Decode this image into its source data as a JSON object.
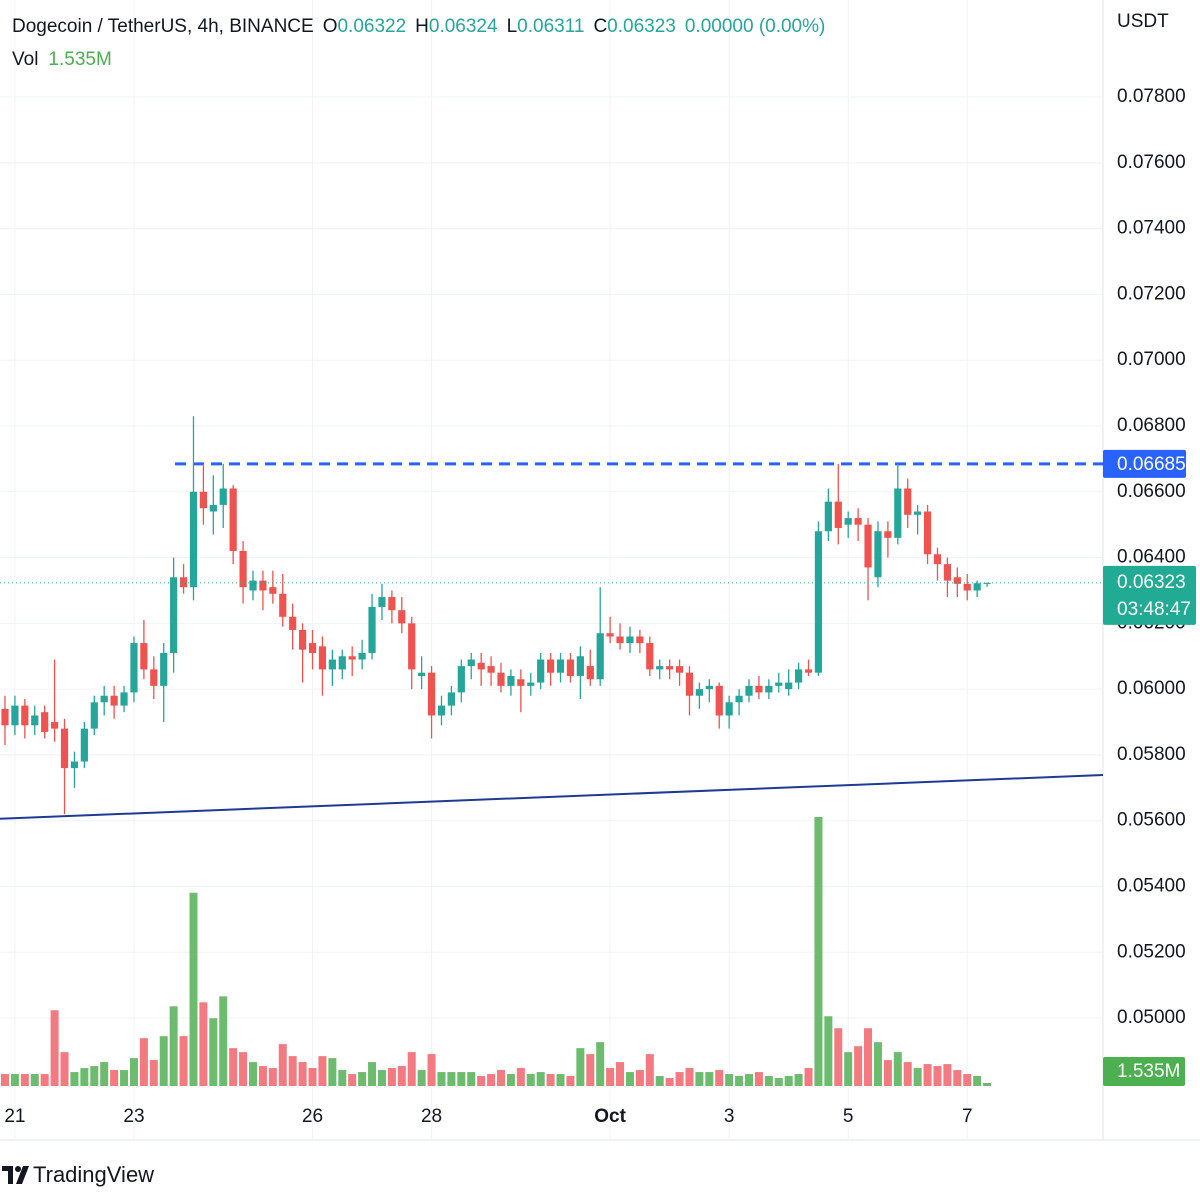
{
  "chart_data": {
    "type": "candlestick",
    "title": "Dogecoin / TetherUS, 4h, BINANCE",
    "ohlc_labels": [
      "O",
      "H",
      "L",
      "C"
    ],
    "change": "0.00000 (0.00%)",
    "volume_title": "Vol",
    "volume_label": "1.535M",
    "axis_unit": "USDT",
    "countdown": "03:48:47",
    "brand": "TradingView",
    "up_color": "#26a69a",
    "down_color": "#ef5350",
    "volume_up_color": "#6dbb6f",
    "volume_down_color": "#f27a80",
    "resistance": 0.06685,
    "resistance_color": "#2962ff",
    "support_line": [
      0.05606,
      0.05739
    ],
    "support_color": "#1e3a94",
    "grid": true,
    "categories": [
      null,
      "21",
      null,
      null,
      null,
      null,
      null,
      null,
      null,
      null,
      null,
      null,
      null,
      "23",
      null,
      null,
      null,
      null,
      null,
      null,
      null,
      null,
      null,
      null,
      null,
      null,
      null,
      null,
      null,
      null,
      null,
      "26",
      null,
      null,
      null,
      null,
      null,
      null,
      null,
      null,
      null,
      null,
      null,
      "28",
      null,
      null,
      null,
      null,
      null,
      null,
      null,
      null,
      null,
      null,
      null,
      null,
      null,
      null,
      null,
      null,
      null,
      "Oct",
      null,
      null,
      null,
      null,
      null,
      null,
      null,
      null,
      null,
      null,
      null,
      "3",
      null,
      null,
      null,
      null,
      null,
      null,
      null,
      null,
      null,
      null,
      null,
      "5",
      null,
      null,
      null,
      null,
      null,
      null,
      null,
      null,
      null,
      null,
      null,
      "7",
      null,
      null
    ],
    "open": [
      0.0594,
      0.0589,
      0.0595,
      0.0589,
      0.0593,
      0.059,
      0.0588,
      0.0576,
      0.0578,
      0.0588,
      0.0596,
      0.0598,
      0.0595,
      0.0599,
      0.0614,
      0.0606,
      0.0601,
      0.0611,
      0.0634,
      0.0631,
      0.066,
      0.0654,
      0.0656,
      0.0661,
      0.0642,
      0.063,
      0.0633,
      0.0631,
      0.0629,
      0.0622,
      0.0618,
      0.0614,
      0.0613,
      0.0606,
      0.0606,
      0.061,
      0.0609,
      0.0611,
      0.0625,
      0.0628,
      0.0624,
      0.062,
      0.0604,
      0.0605,
      0.0592,
      0.0595,
      0.0599,
      0.0607,
      0.0608,
      0.0607,
      0.0605,
      0.0601,
      0.0603,
      0.0601,
      0.0602,
      0.0609,
      0.0605,
      0.0609,
      0.0604,
      0.0607,
      0.0603,
      0.0617,
      0.0616,
      0.0614,
      0.0616,
      0.0614,
      0.0606,
      0.0607,
      0.0607,
      0.0605,
      0.0598,
      0.06,
      0.0601,
      0.0592,
      0.0596,
      0.0598,
      0.0601,
      0.0599,
      0.0601,
      0.06,
      0.0602,
      0.0606,
      0.0605,
      0.0648,
      0.0657,
      0.065,
      0.0652,
      0.065,
      0.0634,
      0.0648,
      0.0646,
      0.0661,
      0.0653,
      0.0654,
      0.0641,
      0.0638,
      0.0634,
      0.0632,
      0.063,
      0.06322
    ],
    "high": [
      0.0598,
      0.0598,
      0.0597,
      0.0595,
      0.0595,
      0.0609,
      0.0591,
      0.0581,
      0.059,
      0.0598,
      0.0601,
      0.0601,
      0.0601,
      0.0616,
      0.0621,
      0.061,
      0.0614,
      0.064,
      0.0638,
      0.0683,
      0.06685,
      0.0665,
      0.06685,
      0.0662,
      0.0645,
      0.0636,
      0.0636,
      0.0636,
      0.0635,
      0.0626,
      0.062,
      0.0618,
      0.0616,
      0.0612,
      0.0612,
      0.0613,
      0.0615,
      0.0629,
      0.0632,
      0.063,
      0.0628,
      0.0622,
      0.061,
      0.0607,
      0.0598,
      0.0601,
      0.0609,
      0.0611,
      0.0611,
      0.061,
      0.0608,
      0.0606,
      0.0606,
      0.0605,
      0.0611,
      0.0611,
      0.0611,
      0.0611,
      0.0613,
      0.0612,
      0.0631,
      0.0622,
      0.062,
      0.0619,
      0.0618,
      0.0616,
      0.0609,
      0.0609,
      0.0609,
      0.0607,
      0.0602,
      0.0603,
      0.0602,
      0.0598,
      0.06,
      0.0603,
      0.0604,
      0.0603,
      0.0605,
      0.0606,
      0.0608,
      0.0609,
      0.0651,
      0.0661,
      0.06685,
      0.0654,
      0.0655,
      0.0652,
      0.0651,
      0.0651,
      0.06685,
      0.0664,
      0.0656,
      0.0656,
      0.0643,
      0.064,
      0.0637,
      0.0635,
      0.0633,
      0.06324
    ],
    "low": [
      0.0583,
      0.0586,
      0.0585,
      0.0586,
      0.0585,
      0.0584,
      0.0562,
      0.057,
      0.0576,
      0.0586,
      0.0592,
      0.0591,
      0.0593,
      0.0596,
      0.0603,
      0.0597,
      0.059,
      0.0605,
      0.0629,
      0.0627,
      0.065,
      0.0647,
      0.0649,
      0.0638,
      0.0626,
      0.0627,
      0.0624,
      0.0626,
      0.0619,
      0.0612,
      0.0602,
      0.0606,
      0.0598,
      0.0601,
      0.0603,
      0.0604,
      0.0606,
      0.0609,
      0.0621,
      0.062,
      0.0617,
      0.06,
      0.06,
      0.0585,
      0.0589,
      0.0592,
      0.0596,
      0.0603,
      0.0601,
      0.0601,
      0.0599,
      0.0598,
      0.0593,
      0.0598,
      0.06,
      0.0601,
      0.0602,
      0.0602,
      0.0597,
      0.0601,
      0.0601,
      0.0614,
      0.0612,
      0.0611,
      0.0611,
      0.0604,
      0.0603,
      0.0603,
      0.0601,
      0.0592,
      0.0594,
      0.0596,
      0.0588,
      0.0588,
      0.0592,
      0.0596,
      0.0597,
      0.0597,
      0.0599,
      0.0598,
      0.06,
      0.0604,
      0.0604,
      0.0645,
      0.0644,
      0.0646,
      0.0645,
      0.0627,
      0.0631,
      0.064,
      0.0644,
      0.0649,
      0.0647,
      0.0638,
      0.0633,
      0.0628,
      0.0628,
      0.0627,
      0.0628,
      0.06311
    ],
    "close": [
      0.0589,
      0.0595,
      0.0589,
      0.0592,
      0.0587,
      0.0588,
      0.0576,
      0.0578,
      0.0588,
      0.0596,
      0.0598,
      0.0595,
      0.0599,
      0.0614,
      0.0606,
      0.0601,
      0.0611,
      0.0634,
      0.0631,
      0.066,
      0.0655,
      0.0656,
      0.0661,
      0.0642,
      0.0631,
      0.0633,
      0.063,
      0.0629,
      0.0622,
      0.0618,
      0.0612,
      0.0611,
      0.0606,
      0.0609,
      0.061,
      0.0609,
      0.0611,
      0.0625,
      0.0628,
      0.0624,
      0.062,
      0.0606,
      0.0605,
      0.0592,
      0.0595,
      0.0599,
      0.0607,
      0.0609,
      0.0606,
      0.0605,
      0.0601,
      0.0604,
      0.0601,
      0.0602,
      0.0609,
      0.0605,
      0.0609,
      0.0604,
      0.061,
      0.0603,
      0.0617,
      0.0616,
      0.0614,
      0.0616,
      0.0614,
      0.0606,
      0.0607,
      0.0606,
      0.0605,
      0.0598,
      0.06,
      0.0601,
      0.0592,
      0.0596,
      0.0598,
      0.0601,
      0.0599,
      0.0601,
      0.0602,
      0.0602,
      0.0606,
      0.0605,
      0.0648,
      0.0657,
      0.0649,
      0.0652,
      0.065,
      0.0637,
      0.0648,
      0.0646,
      0.0661,
      0.0653,
      0.0654,
      0.0641,
      0.0638,
      0.0633,
      0.0632,
      0.063,
      0.06322,
      0.06323
    ],
    "volume": [
      6,
      6,
      6,
      6,
      6,
      38,
      17,
      7,
      9,
      10,
      12,
      8,
      8,
      14,
      24,
      13,
      25,
      40,
      25,
      97,
      42,
      34,
      45,
      19,
      17,
      12,
      10,
      9,
      21,
      15,
      12,
      9,
      15,
      14,
      8,
      6,
      7,
      12,
      8,
      9,
      10,
      17,
      8,
      16,
      7,
      7,
      7,
      7,
      5,
      6,
      8,
      6,
      9,
      6,
      7,
      6,
      6,
      5,
      19,
      16,
      22,
      9,
      12,
      7,
      8,
      16,
      5,
      4,
      7,
      9,
      7,
      7,
      8,
      6,
      5,
      6,
      7,
      5,
      4,
      5,
      6,
      9,
      135,
      35,
      29,
      17,
      20,
      29,
      22,
      13,
      17,
      12,
      9,
      11,
      10,
      11,
      8,
      6,
      5,
      1.535
    ],
    "ylim": [
      0.04751,
      0.08095
    ],
    "vlim": [
      0,
      135
    ],
    "yticks": [
      {
        "value": 0.05,
        "label": "0.05000"
      },
      {
        "value": 0.052,
        "label": "0.05200"
      },
      {
        "value": 0.054,
        "label": "0.05400"
      },
      {
        "value": 0.056,
        "label": "0.05600"
      },
      {
        "value": 0.058,
        "label": "0.05800"
      },
      {
        "value": 0.06,
        "label": "0.06000"
      },
      {
        "value": 0.062,
        "label": "0.06200"
      },
      {
        "value": 0.064,
        "label": "0.06400"
      },
      {
        "value": 0.066,
        "label": "0.06600"
      },
      {
        "value": 0.068,
        "label": "0.06800"
      },
      {
        "value": 0.07,
        "label": "0.07000"
      },
      {
        "value": 0.072,
        "label": "0.07200"
      },
      {
        "value": 0.074,
        "label": "0.07400"
      },
      {
        "value": 0.076,
        "label": "0.07600"
      },
      {
        "value": 0.078,
        "label": "0.07800"
      }
    ]
  }
}
